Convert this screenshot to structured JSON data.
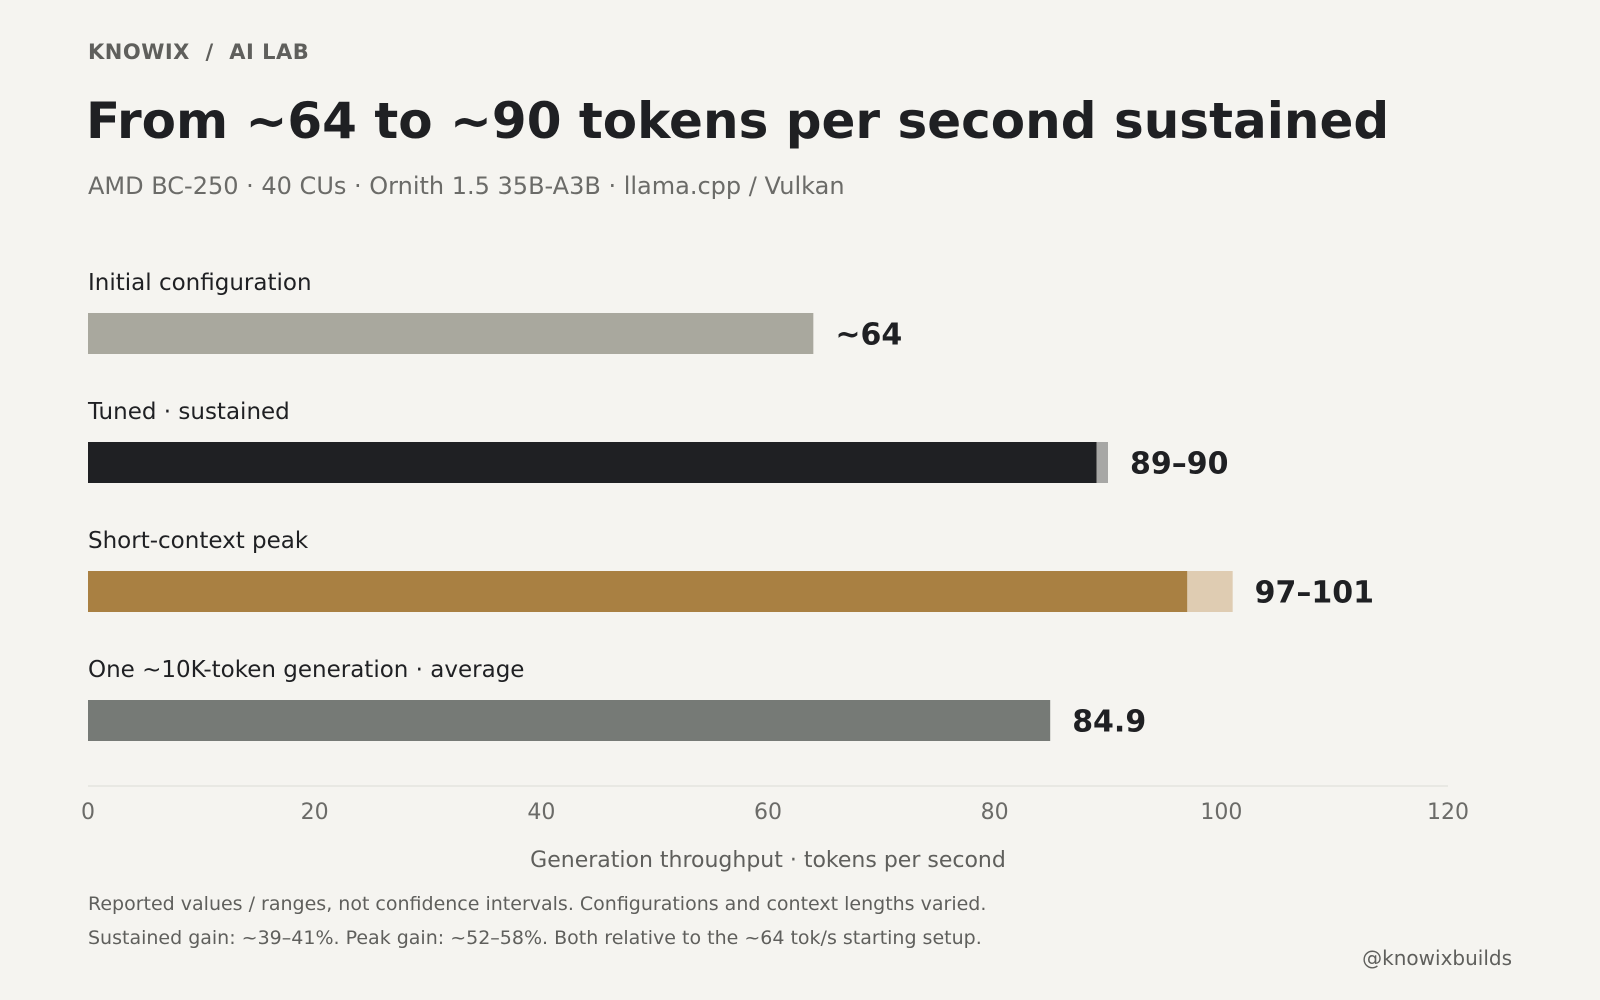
{
  "header": {
    "kicker": "KNOWIX  /  AI LAB",
    "title": "From ~64 to ~90 tokens per second sustained",
    "subtitle": "AMD BC-250 · 40 CUs · Ornith 1.5 35B-A3B · llama.cpp / Vulkan"
  },
  "chart_data": {
    "type": "bar",
    "orientation": "horizontal",
    "xlabel": "Generation throughput · tokens per second",
    "xlim": [
      0,
      120
    ],
    "xticks": [
      0,
      20,
      40,
      60,
      80,
      100,
      120
    ],
    "grid": false,
    "bars": [
      {
        "label": "Initial configuration",
        "value": 64,
        "range_end": null,
        "value_label": "~64",
        "color": "#a9a89e",
        "range_color": null
      },
      {
        "label": "Tuned · sustained",
        "value": 89,
        "range_end": 90,
        "value_label": "89–90",
        "color": "#1f2023",
        "range_color": "#a7a7a5"
      },
      {
        "label": "Short-context peak",
        "value": 97,
        "range_end": 101,
        "value_label": "97–101",
        "color": "#a98042",
        "range_color": "#dfccb2"
      },
      {
        "label": "One ~10K-token generation · average",
        "value": 84.9,
        "range_end": null,
        "value_label": "84.9",
        "color": "#767a76",
        "range_color": null
      }
    ]
  },
  "footnotes": [
    "Reported values / ranges, not confidence intervals. Configurations and context lengths varied.",
    "Sustained gain: ~39–41%. Peak gain: ~52–58%. Both relative to the ~64 tok/s starting setup."
  ],
  "handle": "@knowixbuilds"
}
